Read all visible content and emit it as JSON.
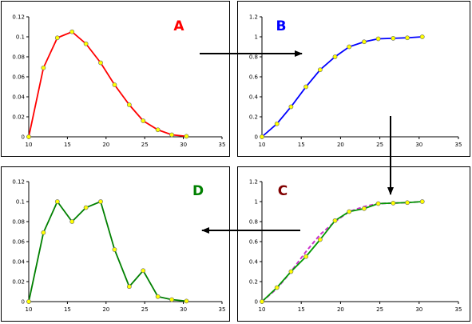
{
  "chart_data": [
    {
      "type": "line",
      "label": "A",
      "label_color": "#ff0000",
      "line_color": "#ff0000",
      "marker_color": "#ffff00",
      "x": [
        10,
        11.9,
        13.7,
        15.6,
        17.4,
        19.3,
        21.1,
        23,
        24.8,
        26.7,
        28.5,
        30.4
      ],
      "series": [
        {
          "values": [
            0,
            0.069,
            0.099,
            0.105,
            0.093,
            0.074,
            0.052,
            0.032,
            0.016,
            0.007,
            0.002,
            0.0005
          ]
        }
      ],
      "xlim": [
        10,
        35
      ],
      "ylim": [
        0,
        0.12
      ],
      "xticks": [
        "10",
        "15",
        "20",
        "25",
        "30",
        "35"
      ],
      "yticks": [
        "0",
        "0.02",
        "0.04",
        "0.06",
        "0.08",
        "0.1",
        "0.12"
      ]
    },
    {
      "type": "line",
      "label": "B",
      "label_color": "#0000ff",
      "line_color": "#0000ff",
      "marker_color": "#ffff00",
      "x": [
        10,
        11.9,
        13.7,
        15.6,
        17.4,
        19.3,
        21.1,
        23,
        24.8,
        26.7,
        28.5,
        30.4
      ],
      "series": [
        {
          "values": [
            0,
            0.13,
            0.3,
            0.5,
            0.67,
            0.8,
            0.9,
            0.95,
            0.98,
            0.985,
            0.99,
            1.0
          ]
        }
      ],
      "xlim": [
        10,
        35
      ],
      "ylim": [
        0,
        1.2
      ],
      "xticks": [
        "10",
        "15",
        "20",
        "25",
        "30",
        "35"
      ],
      "yticks": [
        "0",
        "0.2",
        "0.4",
        "0.6",
        "0.8",
        "1",
        "1.2"
      ]
    },
    {
      "type": "line",
      "label": "C",
      "label_color": "#800000",
      "line_color": "#009900",
      "marker_color": "#ffff00",
      "dash_color": "#cc33cc",
      "x": [
        10,
        11.9,
        13.7,
        15.6,
        17.4,
        19.3,
        21.1,
        23,
        24.8,
        26.7,
        28.5,
        30.4
      ],
      "series": [
        {
          "values": [
            0,
            0.14,
            0.3,
            0.45,
            0.62,
            0.81,
            0.9,
            0.93,
            0.98,
            0.985,
            0.99,
            1.0
          ]
        },
        {
          "values": [
            0,
            0.13,
            0.3,
            0.5,
            0.67,
            0.8,
            0.9,
            0.95,
            0.98,
            0.985,
            0.99,
            1.0
          ]
        }
      ],
      "xlim": [
        10,
        35
      ],
      "ylim": [
        0,
        1.2
      ],
      "xticks": [
        "10",
        "15",
        "20",
        "25",
        "30",
        "35"
      ],
      "yticks": [
        "0",
        "0.2",
        "0.4",
        "0.6",
        "0.8",
        "1",
        "1.2"
      ]
    },
    {
      "type": "line",
      "label": "D",
      "label_color": "#008000",
      "line_color": "#008000",
      "marker_color": "#ffff00",
      "x": [
        10,
        11.9,
        13.7,
        15.6,
        17.4,
        19.3,
        21.1,
        23,
        24.8,
        26.7,
        28.5,
        30.4
      ],
      "series": [
        {
          "values": [
            0,
            0.069,
            0.1,
            0.08,
            0.094,
            0.1,
            0.052,
            0.015,
            0.031,
            0.005,
            0.002,
            0.0005
          ]
        }
      ],
      "xlim": [
        10,
        35
      ],
      "ylim": [
        0,
        0.12
      ],
      "xticks": [
        "10",
        "15",
        "20",
        "25",
        "30",
        "35"
      ],
      "yticks": [
        "0",
        "0.02",
        "0.04",
        "0.06",
        "0.08",
        "0.1",
        "0.12"
      ]
    }
  ]
}
